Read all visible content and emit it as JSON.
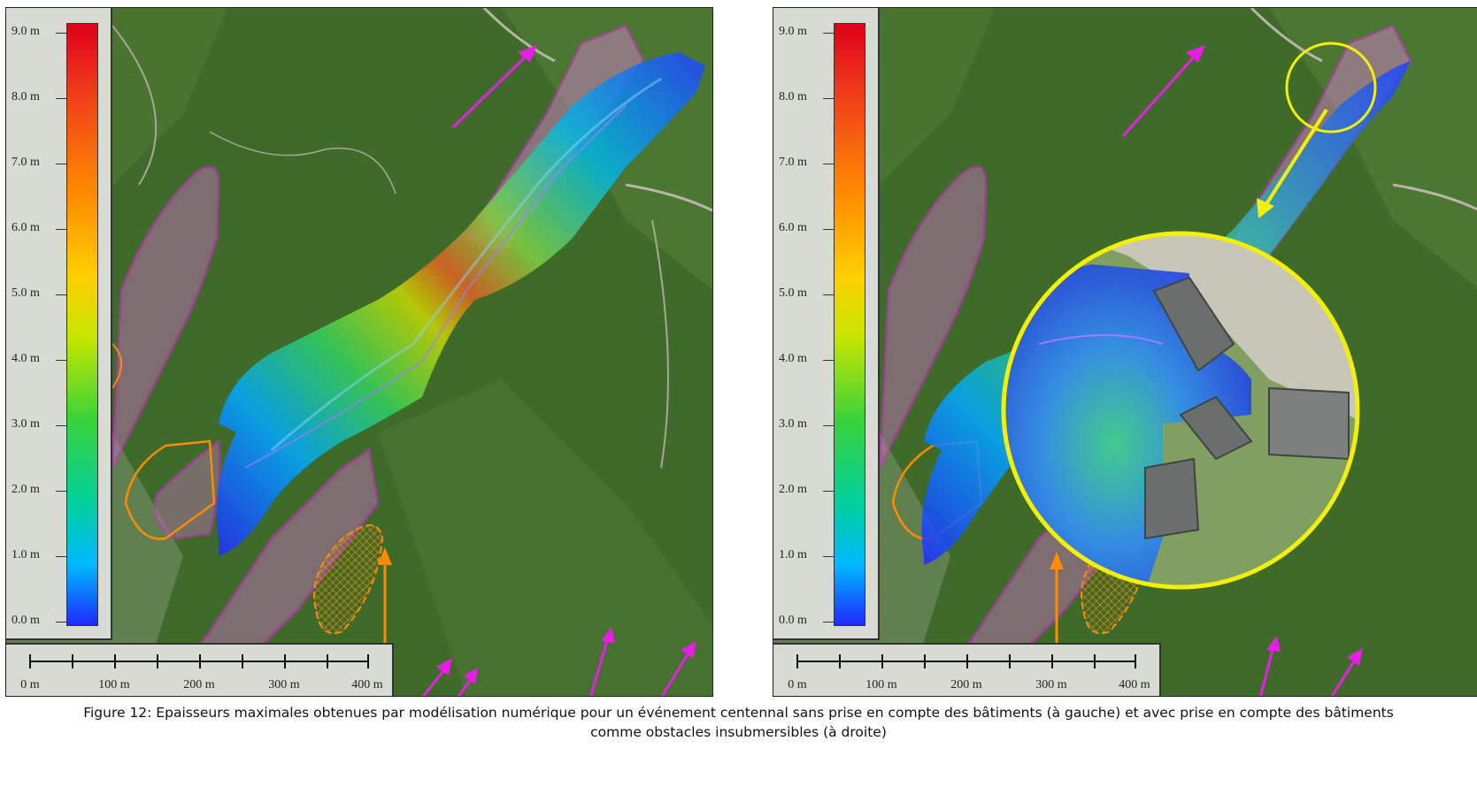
{
  "panels": [
    {
      "id": "left",
      "legend": {
        "ticks": [
          "9.0 m",
          "8.0 m",
          "7.0 m",
          "6.0 m",
          "5.0 m",
          "4.0 m",
          "3.0 m",
          "2.0 m",
          "1.0 m",
          "0.0 m"
        ],
        "min": 0.0,
        "max": 9.0
      },
      "scalebar": {
        "labels": [
          "0 m",
          "100 m",
          "200 m",
          "300 m",
          "400 m"
        ]
      }
    },
    {
      "id": "right",
      "legend": {
        "ticks": [
          "9.0 m",
          "8.0 m",
          "7.0 m",
          "6.0 m",
          "5.0 m",
          "4.0 m",
          "3.0 m",
          "2.0 m",
          "1.0 m",
          "0.0 m"
        ],
        "min": 0.0,
        "max": 9.0
      },
      "scalebar": {
        "labels": [
          "0 m",
          "100 m",
          "200 m",
          "300 m",
          "400 m"
        ]
      }
    }
  ],
  "colors": {
    "zone_outline": "#e81ee8",
    "zone_fill": "#d070c0",
    "hatched_zone": "#ff8c00",
    "flow_arrow": "#e81ee8",
    "orange_arrow": "#ff8c00",
    "zoom_circle": "#f5f000",
    "terrain": "#3f6b2a",
    "colormap": [
      "#1e2aff",
      "#00b8ff",
      "#00d0a0",
      "#38d23a",
      "#c8e600",
      "#ffd000",
      "#ff8a00",
      "#f0401a",
      "#e0001a"
    ]
  },
  "caption": {
    "line1": "Figure 12: Epaisseurs maximales obtenues par modélisation numérique pour un événement centennal sans prise en compte des bâtiments (à gauche) et avec prise en compte des bâtiments",
    "line2": "comme obstacles insubmersibles (à droite)"
  }
}
